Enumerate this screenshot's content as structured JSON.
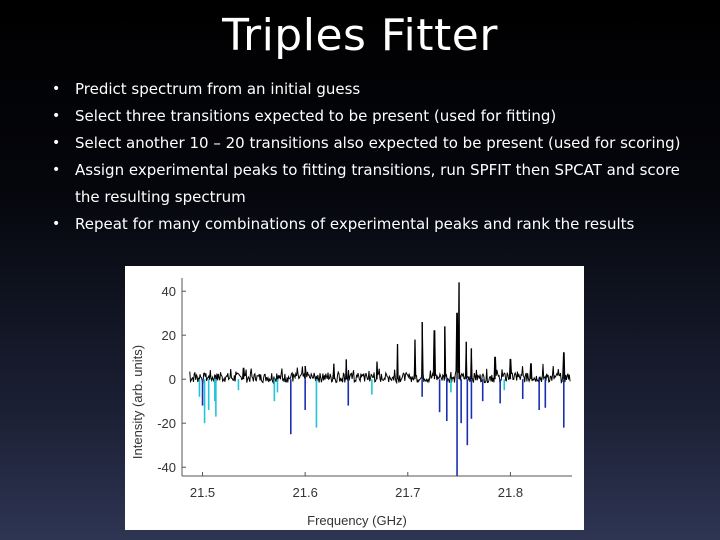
{
  "slide": {
    "title": "Triples Fitter",
    "bullets": [
      "Predict spectrum from an initial guess",
      "Select three transitions expected to be present (used for fitting)",
      "Select another 10 – 20 transitions also expected to be present (used for scoring)",
      "Assign experimental peaks to fitting transitions, run SPFIT then SPCAT and score the resulting spectrum",
      "Repeat for many combinations of experimental peaks and rank the results"
    ]
  },
  "chart_data": {
    "type": "line",
    "title": "",
    "xlabel": "Frequency (GHz)",
    "ylabel": "Intensity (arb. units)",
    "xlim": [
      21.48,
      21.86
    ],
    "ylim": [
      -44,
      46
    ],
    "xticks": [
      "21.5",
      "21.6",
      "21.7",
      "21.8"
    ],
    "yticks": [
      "40",
      "20",
      "0",
      "-20",
      "-40"
    ],
    "colors": {
      "experimental": "#000000",
      "predicted_fit": "#22c4d8",
      "predicted": "#1a2fb0"
    },
    "experimental_peaks": [
      {
        "x": 21.75,
        "y": 44
      },
      {
        "x": 21.748,
        "y": 30
      },
      {
        "x": 21.736,
        "y": 24
      },
      {
        "x": 21.714,
        "y": 26
      },
      {
        "x": 21.726,
        "y": 22
      },
      {
        "x": 21.707,
        "y": 18
      },
      {
        "x": 21.69,
        "y": 16
      },
      {
        "x": 21.757,
        "y": 17
      },
      {
        "x": 21.762,
        "y": 14
      },
      {
        "x": 21.785,
        "y": 10
      },
      {
        "x": 21.8,
        "y": 9
      },
      {
        "x": 21.64,
        "y": 9
      },
      {
        "x": 21.628,
        "y": 7
      },
      {
        "x": 21.6,
        "y": 6
      },
      {
        "x": 21.852,
        "y": 12
      },
      {
        "x": 21.82,
        "y": 7
      },
      {
        "x": 21.54,
        "y": 5
      },
      {
        "x": 21.67,
        "y": 8
      }
    ],
    "predicted_peaks": [
      {
        "x": 21.502,
        "y": -20,
        "series": "fit"
      },
      {
        "x": 21.506,
        "y": -14,
        "series": "fit"
      },
      {
        "x": 21.513,
        "y": -17,
        "series": "fit"
      },
      {
        "x": 21.512,
        "y": -10,
        "series": "fit"
      },
      {
        "x": 21.497,
        "y": -8,
        "series": "fit"
      },
      {
        "x": 21.611,
        "y": -22,
        "series": "fit"
      },
      {
        "x": 21.535,
        "y": -5,
        "series": "fit"
      },
      {
        "x": 21.573,
        "y": -6,
        "series": "fit"
      },
      {
        "x": 21.665,
        "y": -7,
        "series": "fit"
      },
      {
        "x": 21.742,
        "y": -6,
        "series": "fit"
      },
      {
        "x": 21.794,
        "y": -5,
        "series": "fit"
      },
      {
        "x": 21.57,
        "y": -10,
        "series": "fit"
      },
      {
        "x": 21.5,
        "y": -12,
        "series": "predicted"
      },
      {
        "x": 21.586,
        "y": -25,
        "series": "predicted"
      },
      {
        "x": 21.6,
        "y": -14,
        "series": "predicted"
      },
      {
        "x": 21.642,
        "y": -12,
        "series": "predicted"
      },
      {
        "x": 21.714,
        "y": -8,
        "series": "predicted"
      },
      {
        "x": 21.731,
        "y": -15,
        "series": "predicted"
      },
      {
        "x": 21.738,
        "y": -19,
        "series": "predicted"
      },
      {
        "x": 21.748,
        "y": -44,
        "series": "predicted"
      },
      {
        "x": 21.752,
        "y": -20,
        "series": "predicted"
      },
      {
        "x": 21.758,
        "y": -30,
        "series": "predicted"
      },
      {
        "x": 21.762,
        "y": -18,
        "series": "predicted"
      },
      {
        "x": 21.773,
        "y": -10,
        "series": "predicted"
      },
      {
        "x": 21.79,
        "y": -11,
        "series": "predicted"
      },
      {
        "x": 21.812,
        "y": -9,
        "series": "predicted"
      },
      {
        "x": 21.828,
        "y": -14,
        "series": "predicted"
      },
      {
        "x": 21.834,
        "y": -13,
        "series": "predicted"
      },
      {
        "x": 21.852,
        "y": -22,
        "series": "predicted"
      }
    ]
  }
}
